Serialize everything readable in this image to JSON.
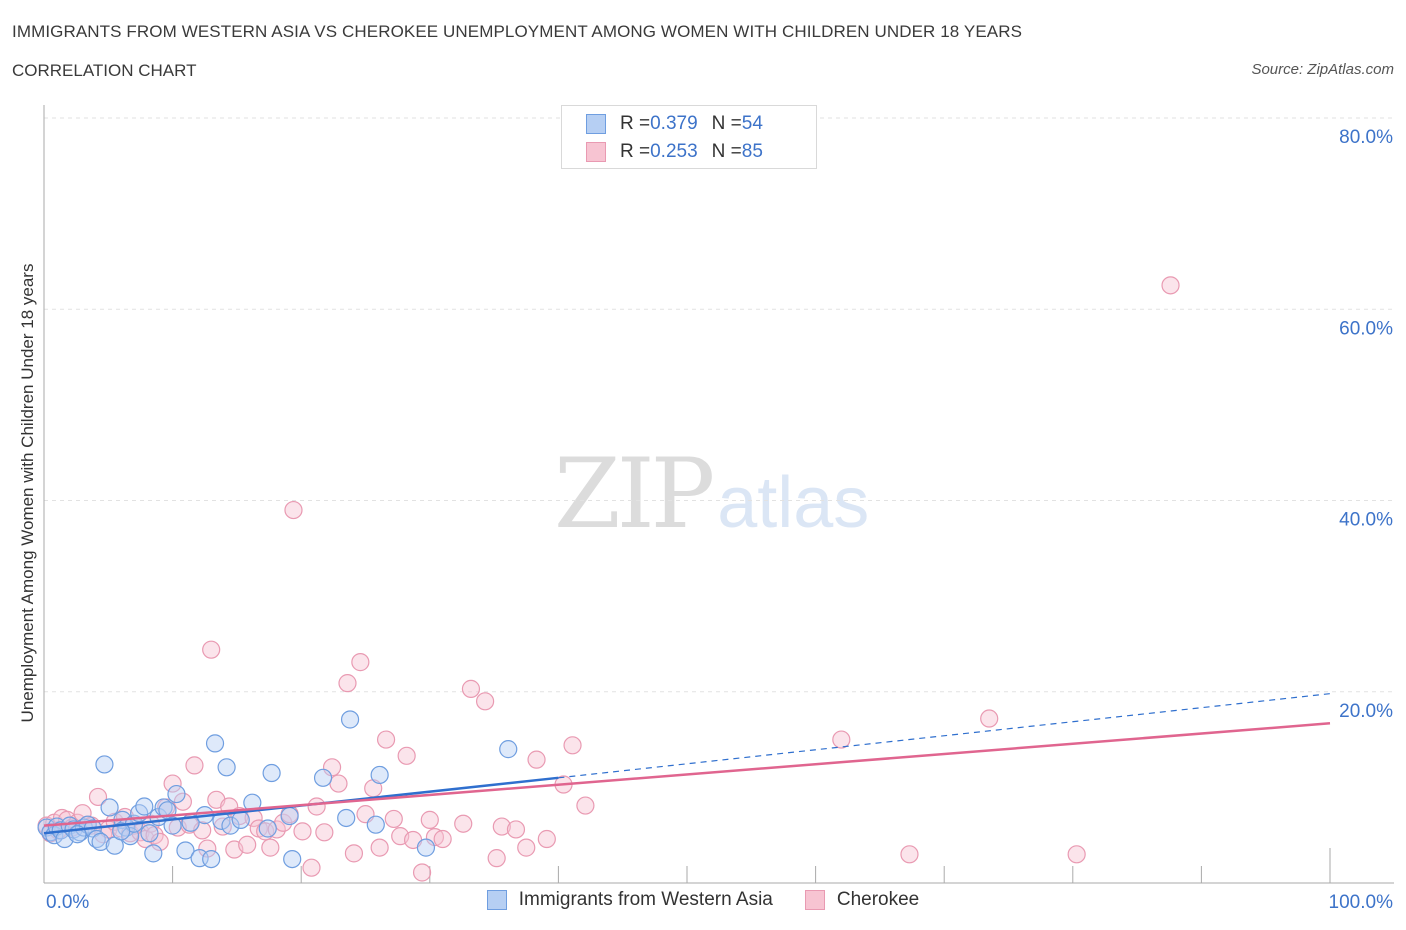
{
  "header": {
    "title": "IMMIGRANTS FROM WESTERN ASIA VS CHEROKEE UNEMPLOYMENT AMONG WOMEN WITH CHILDREN UNDER 18 YEARS",
    "subtitle": "CORRELATION CHART",
    "source": "Source: ZipAtlas.com"
  },
  "watermark": {
    "zip": "ZIP",
    "atlas": "atlas"
  },
  "stats_legend": {
    "rows": [
      {
        "r_label": "R = ",
        "r_value": "0.379",
        "n_label": "N = ",
        "n_value": "54"
      },
      {
        "r_label": "R = ",
        "r_value": "0.253",
        "n_label": "N = ",
        "n_value": "85"
      }
    ]
  },
  "colors": {
    "blue_fill": "#b6cff3",
    "blue_stroke": "#6f9ee0",
    "blue_line": "#2f6fce",
    "pink_fill": "#f7c4d2",
    "pink_stroke": "#e99ab2",
    "pink_line": "#e0658f",
    "value_text": "#3d73c9"
  },
  "chart_data": {
    "type": "scatter",
    "title": "IMMIGRANTS FROM WESTERN ASIA VS CHEROKEE UNEMPLOYMENT AMONG WOMEN WITH CHILDREN UNDER 18 YEARS",
    "subtitle": "CORRELATION CHART",
    "xlabel": "",
    "ylabel": "Unemployment Among Women with Children Under 18 years",
    "xlim": [
      0,
      100
    ],
    "ylim": [
      0,
      80
    ],
    "x_tick_labels": [
      "0.0%",
      "100.0%"
    ],
    "y_tick_labels": [
      "20.0%",
      "40.0%",
      "60.0%",
      "80.0%"
    ],
    "y_ticks": [
      20,
      40,
      60,
      80
    ],
    "grid": true,
    "legend_position": "bottom",
    "series": [
      {
        "name": "Immigrants from Western Asia",
        "r": 0.379,
        "n": 54,
        "trend": {
          "x": [
            0,
            40
          ],
          "y": [
            5.2,
            11.0
          ],
          "dashed_to": [
            100,
            19.8
          ]
        },
        "points": [
          [
            0.2,
            5.8
          ],
          [
            0.5,
            5.3
          ],
          [
            0.8,
            5.0
          ],
          [
            1.0,
            5.9
          ],
          [
            1.3,
            5.5
          ],
          [
            1.6,
            4.6
          ],
          [
            2.0,
            6.0
          ],
          [
            2.3,
            5.6
          ],
          [
            2.8,
            5.3
          ],
          [
            3.1,
            5.8
          ],
          [
            3.4,
            6.1
          ],
          [
            3.8,
            5.7
          ],
          [
            4.1,
            4.6
          ],
          [
            4.4,
            4.3
          ],
          [
            4.7,
            12.4
          ],
          [
            5.1,
            7.9
          ],
          [
            5.5,
            3.9
          ],
          [
            6.1,
            6.6
          ],
          [
            6.4,
            5.8
          ],
          [
            6.7,
            4.9
          ],
          [
            7.0,
            6.2
          ],
          [
            7.4,
            7.3
          ],
          [
            7.8,
            8.0
          ],
          [
            8.2,
            5.2
          ],
          [
            8.5,
            3.1
          ],
          [
            8.9,
            6.9
          ],
          [
            9.3,
            7.9
          ],
          [
            9.6,
            7.6
          ],
          [
            10.3,
            9.3
          ],
          [
            11.0,
            3.4
          ],
          [
            11.4,
            6.3
          ],
          [
            12.1,
            2.6
          ],
          [
            12.5,
            7.1
          ],
          [
            13.0,
            2.5
          ],
          [
            13.3,
            14.6
          ],
          [
            13.8,
            6.5
          ],
          [
            14.2,
            12.1
          ],
          [
            14.5,
            6.0
          ],
          [
            15.3,
            6.6
          ],
          [
            16.2,
            8.4
          ],
          [
            17.4,
            5.7
          ],
          [
            17.7,
            11.5
          ],
          [
            19.1,
            7.0
          ],
          [
            19.3,
            2.5
          ],
          [
            21.7,
            11.0
          ],
          [
            23.5,
            6.8
          ],
          [
            23.8,
            17.1
          ],
          [
            25.8,
            6.1
          ],
          [
            26.1,
            11.3
          ],
          [
            29.7,
            3.7
          ],
          [
            36.1,
            14.0
          ],
          [
            2.6,
            5.1
          ],
          [
            6.0,
            5.4
          ],
          [
            10.0,
            6.0
          ]
        ]
      },
      {
        "name": "Cherokee",
        "r": 0.253,
        "n": 85,
        "trend": {
          "x": [
            0,
            100
          ],
          "y": [
            6.0,
            16.7
          ]
        },
        "points": [
          [
            0.2,
            6.0
          ],
          [
            0.5,
            5.2
          ],
          [
            0.8,
            6.3
          ],
          [
            1.1,
            5.5
          ],
          [
            1.4,
            6.8
          ],
          [
            1.8,
            6.6
          ],
          [
            2.2,
            5.8
          ],
          [
            2.6,
            6.3
          ],
          [
            3.0,
            7.3
          ],
          [
            3.4,
            6.1
          ],
          [
            3.7,
            6.0
          ],
          [
            4.2,
            9.0
          ],
          [
            4.6,
            5.1
          ],
          [
            5.0,
            5.6
          ],
          [
            5.5,
            6.4
          ],
          [
            6.0,
            5.7
          ],
          [
            6.3,
            6.9
          ],
          [
            6.7,
            5.2
          ],
          [
            7.0,
            6.0
          ],
          [
            7.5,
            5.3
          ],
          [
            7.9,
            4.6
          ],
          [
            8.3,
            6.2
          ],
          [
            8.6,
            5.0
          ],
          [
            9.0,
            4.3
          ],
          [
            9.5,
            7.9
          ],
          [
            10.0,
            10.4
          ],
          [
            10.4,
            5.8
          ],
          [
            10.8,
            8.5
          ],
          [
            11.3,
            6.1
          ],
          [
            11.7,
            12.3
          ],
          [
            12.3,
            5.5
          ],
          [
            12.7,
            3.6
          ],
          [
            13.0,
            24.4
          ],
          [
            13.4,
            8.7
          ],
          [
            13.9,
            5.9
          ],
          [
            14.4,
            8.0
          ],
          [
            14.8,
            3.5
          ],
          [
            15.2,
            7.0
          ],
          [
            15.8,
            4.0
          ],
          [
            16.3,
            6.8
          ],
          [
            16.7,
            5.7
          ],
          [
            17.2,
            5.4
          ],
          [
            17.6,
            3.7
          ],
          [
            18.1,
            5.6
          ],
          [
            18.6,
            6.3
          ],
          [
            19.1,
            7.2
          ],
          [
            19.4,
            39.0
          ],
          [
            20.1,
            5.4
          ],
          [
            20.8,
            1.6
          ],
          [
            21.2,
            8.0
          ],
          [
            21.8,
            5.3
          ],
          [
            22.4,
            12.1
          ],
          [
            22.9,
            10.4
          ],
          [
            23.6,
            20.9
          ],
          [
            24.1,
            3.1
          ],
          [
            24.6,
            23.1
          ],
          [
            25.0,
            7.2
          ],
          [
            25.6,
            9.9
          ],
          [
            26.1,
            3.7
          ],
          [
            26.6,
            15.0
          ],
          [
            27.2,
            6.7
          ],
          [
            27.7,
            4.9
          ],
          [
            28.2,
            13.3
          ],
          [
            28.7,
            4.5
          ],
          [
            29.4,
            1.1
          ],
          [
            30.0,
            6.6
          ],
          [
            30.4,
            4.8
          ],
          [
            31.0,
            4.6
          ],
          [
            32.6,
            6.2
          ],
          [
            33.2,
            20.3
          ],
          [
            34.3,
            19.0
          ],
          [
            35.2,
            2.6
          ],
          [
            35.6,
            5.9
          ],
          [
            36.7,
            5.6
          ],
          [
            37.5,
            3.7
          ],
          [
            38.3,
            12.9
          ],
          [
            39.1,
            4.6
          ],
          [
            40.4,
            10.3
          ],
          [
            41.1,
            14.4
          ],
          [
            42.1,
            8.1
          ],
          [
            62.0,
            15.0
          ],
          [
            67.3,
            3.0
          ],
          [
            73.5,
            17.2
          ],
          [
            80.3,
            3.0
          ],
          [
            87.6,
            62.5
          ]
        ]
      }
    ]
  }
}
